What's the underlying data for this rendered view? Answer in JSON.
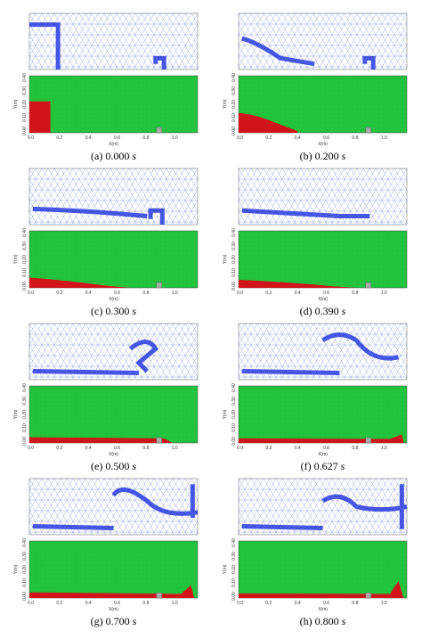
{
  "panels": [
    {
      "label": "(a)",
      "time": "0.000",
      "unit": "s"
    },
    {
      "label": "(b)",
      "time": "0.200",
      "unit": "s"
    },
    {
      "label": "(c)",
      "time": "0.300",
      "unit": "s"
    },
    {
      "label": "(d)",
      "time": "0.390",
      "unit": "s"
    },
    {
      "label": "(e)",
      "time": "0.500",
      "unit": "s"
    },
    {
      "label": "(f)",
      "time": "0.627",
      "unit": "s"
    },
    {
      "label": "(g)",
      "time": "0.700",
      "unit": "s"
    },
    {
      "label": "(h)",
      "time": "0.800",
      "unit": "s"
    }
  ],
  "axes": {
    "xlabel": "X(m)",
    "ylabel": "Y(m)",
    "xticks": [
      "0.0",
      "0.2",
      "0.4",
      "0.6",
      "0.8",
      "1.0"
    ],
    "yticks": [
      "0.00",
      "0.10",
      "0.20",
      "0.30",
      "0.40"
    ]
  }
}
